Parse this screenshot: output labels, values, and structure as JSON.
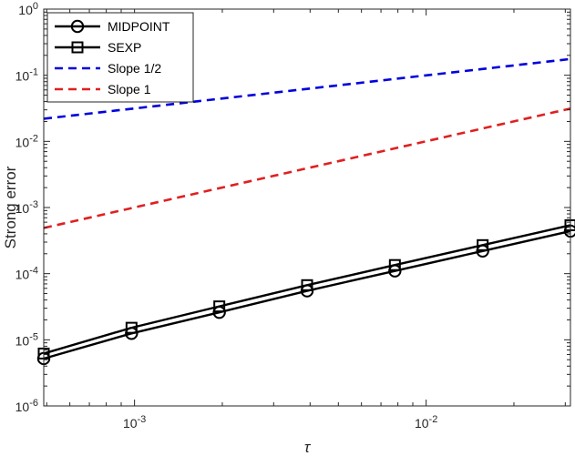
{
  "chart_data": {
    "type": "line",
    "xscale": "log",
    "yscale": "log",
    "xlim": [
      0.00048828125,
      0.03125
    ],
    "ylim": [
      1e-06,
      1
    ],
    "xlabel": "τ",
    "ylabel": "Strong error",
    "grid": false,
    "legend_position": "top-left",
    "x_ticks": [
      {
        "value": 0.001,
        "base": "10",
        "exp": "-3"
      },
      {
        "value": 0.01,
        "base": "10",
        "exp": "-2"
      }
    ],
    "y_ticks": [
      {
        "value": 1e-06,
        "base": "10",
        "exp": "-6"
      },
      {
        "value": 1e-05,
        "base": "10",
        "exp": "-5"
      },
      {
        "value": 0.0001,
        "base": "10",
        "exp": "-4"
      },
      {
        "value": 0.001,
        "base": "10",
        "exp": "-3"
      },
      {
        "value": 0.01,
        "base": "10",
        "exp": "-2"
      },
      {
        "value": 0.1,
        "base": "10",
        "exp": "-1"
      },
      {
        "value": 1,
        "base": "10",
        "exp": "0"
      }
    ],
    "series": [
      {
        "name": "MIDPOINT",
        "color": "#000000",
        "line": "solid",
        "marker": "circle",
        "x": [
          0.00048828125,
          0.0009765625,
          0.001953125,
          0.00390625,
          0.0078125,
          0.015625,
          0.03125
        ],
        "y": [
          5.2e-06,
          1.25e-05,
          2.6e-05,
          5.5e-05,
          0.00011,
          0.00022,
          0.00044
        ]
      },
      {
        "name": "SEXP",
        "color": "#000000",
        "line": "solid",
        "marker": "square",
        "x": [
          0.00048828125,
          0.0009765625,
          0.001953125,
          0.00390625,
          0.0078125,
          0.015625,
          0.03125
        ],
        "y": [
          6.2e-06,
          1.52e-05,
          3.2e-05,
          6.7e-05,
          0.000135,
          0.00027,
          0.00054
        ]
      },
      {
        "name": "Slope 1/2",
        "color": "#0000dd",
        "line": "dashed",
        "marker": "none",
        "x": [
          0.00048828125,
          0.03125
        ],
        "y": [
          0.022,
          0.176
        ]
      },
      {
        "name": "Slope 1",
        "color": "#e02020",
        "line": "dashed",
        "marker": "none",
        "x": [
          0.00048828125,
          0.03125
        ],
        "y": [
          0.00049,
          0.03136
        ]
      }
    ]
  }
}
